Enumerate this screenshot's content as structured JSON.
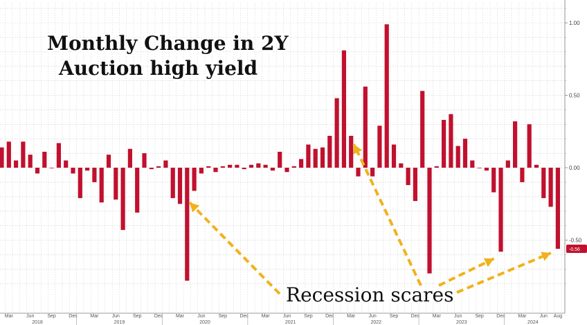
{
  "title": {
    "line1": "Monthly Change in 2Y",
    "line2": "Auction high yield"
  },
  "annotation": {
    "text": "Recession scares"
  },
  "last_value_label": "-0.56",
  "colors": {
    "bar": "#c0112f",
    "grid": "#c8c8c8",
    "arrow": "#f0b21c",
    "last_label_bg": "#c0112f"
  },
  "chart_data": {
    "type": "bar",
    "title": "Monthly Change in 2Y Auction high yield",
    "xlabel": "",
    "ylabel": "",
    "ylim": [
      -0.8,
      1.1
    ],
    "yticks": [
      1.0,
      0.5,
      0.0,
      -0.5
    ],
    "ytick_labels": [
      "1.00",
      "0.50",
      "0.00",
      "-0.50"
    ],
    "grid": true,
    "y_axis_position": "right",
    "x_start": "2018-02",
    "categories": [
      "2018-02",
      "2018-03",
      "2018-04",
      "2018-05",
      "2018-06",
      "2018-07",
      "2018-08",
      "2018-09",
      "2018-10",
      "2018-11",
      "2018-12",
      "2019-01",
      "2019-02",
      "2019-03",
      "2019-04",
      "2019-05",
      "2019-06",
      "2019-07",
      "2019-08",
      "2019-09",
      "2019-10",
      "2019-11",
      "2019-12",
      "2020-01",
      "2020-02",
      "2020-03",
      "2020-04",
      "2020-05",
      "2020-06",
      "2020-07",
      "2020-08",
      "2020-09",
      "2020-10",
      "2020-11",
      "2020-12",
      "2021-01",
      "2021-02",
      "2021-03",
      "2021-04",
      "2021-05",
      "2021-06",
      "2021-07",
      "2021-08",
      "2021-09",
      "2021-10",
      "2021-11",
      "2021-12",
      "2022-01",
      "2022-02",
      "2022-03",
      "2022-04",
      "2022-05",
      "2022-06",
      "2022-07",
      "2022-08",
      "2022-09",
      "2022-10",
      "2022-11",
      "2022-12",
      "2023-01",
      "2023-02",
      "2023-03",
      "2023-04",
      "2023-05",
      "2023-06",
      "2023-07",
      "2023-08",
      "2023-09",
      "2023-10",
      "2023-11",
      "2023-12",
      "2024-01",
      "2024-02",
      "2024-03",
      "2024-04",
      "2024-05",
      "2024-06",
      "2024-07",
      "2024-08"
    ],
    "values": [
      0.14,
      0.18,
      0.05,
      0.18,
      0.09,
      -0.04,
      0.11,
      0.0,
      0.17,
      0.05,
      -0.04,
      -0.21,
      -0.02,
      -0.1,
      -0.24,
      0.09,
      -0.22,
      -0.43,
      0.13,
      -0.31,
      0.1,
      -0.01,
      0.01,
      0.05,
      -0.21,
      -0.25,
      -0.78,
      -0.16,
      -0.04,
      0.01,
      -0.03,
      0.01,
      0.02,
      0.02,
      -0.01,
      0.02,
      0.03,
      0.02,
      -0.02,
      0.11,
      -0.03,
      0.01,
      0.06,
      0.16,
      0.13,
      0.14,
      0.22,
      0.48,
      0.81,
      0.22,
      -0.06,
      0.56,
      -0.06,
      0.29,
      0.99,
      0.16,
      0.03,
      -0.12,
      -0.23,
      0.53,
      -0.73,
      0.01,
      0.33,
      0.37,
      0.15,
      0.2,
      0.05,
      0.0,
      -0.02,
      -0.17,
      -0.58,
      0.05,
      0.32,
      -0.1,
      0.3,
      0.02,
      -0.21,
      -0.27,
      -0.56
    ],
    "x_tick_labels": [
      {
        "month": "2018-03",
        "label": "Mar"
      },
      {
        "month": "2018-06",
        "label": "Jun"
      },
      {
        "month": "2018-09",
        "label": "Sep"
      },
      {
        "month": "2018-12",
        "label": "Dec"
      },
      {
        "month": "2019-03",
        "label": "Mar"
      },
      {
        "month": "2019-06",
        "label": "Jun"
      },
      {
        "month": "2019-09",
        "label": "Sep"
      },
      {
        "month": "2019-12",
        "label": "Dec"
      },
      {
        "month": "2020-03",
        "label": "Mar"
      },
      {
        "month": "2020-06",
        "label": "Jun"
      },
      {
        "month": "2020-09",
        "label": "Sep"
      },
      {
        "month": "2020-12",
        "label": "Dec"
      },
      {
        "month": "2021-03",
        "label": "Mar"
      },
      {
        "month": "2021-06",
        "label": "Jun"
      },
      {
        "month": "2021-09",
        "label": "Sep"
      },
      {
        "month": "2021-12",
        "label": "Dec"
      },
      {
        "month": "2022-03",
        "label": "Mar"
      },
      {
        "month": "2022-06",
        "label": "Jun"
      },
      {
        "month": "2022-09",
        "label": "Sep"
      },
      {
        "month": "2022-12",
        "label": "Dec"
      },
      {
        "month": "2023-03",
        "label": "Mar"
      },
      {
        "month": "2023-06",
        "label": "Jun"
      },
      {
        "month": "2023-09",
        "label": "Sep"
      },
      {
        "month": "2023-12",
        "label": "Dec"
      },
      {
        "month": "2024-03",
        "label": "Mar"
      },
      {
        "month": "2024-06",
        "label": "Jun"
      },
      {
        "month": "2024-08",
        "label": "Aug"
      }
    ],
    "x_year_labels": [
      "2018",
      "2019",
      "2020",
      "2021",
      "2022",
      "2023",
      "2024"
    ],
    "annotated_bars": [
      "2020-03",
      "2022-03",
      "2023-12",
      "2024-08"
    ]
  }
}
